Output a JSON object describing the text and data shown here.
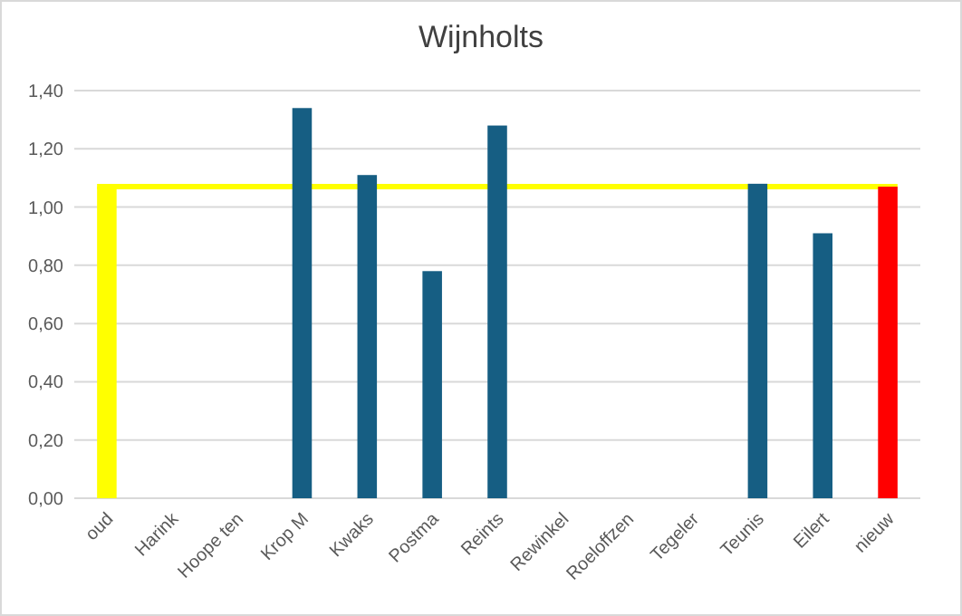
{
  "chart_data": {
    "type": "bar",
    "title": "Wijnholts",
    "categories": [
      "oud",
      "Harink",
      "Hoope ten",
      "Krop M",
      "Kwaks",
      "Postma",
      "Reints",
      "Rewinkel",
      "Roeloffzen",
      "Tegeler",
      "Teunis",
      "Eilert",
      "nieuw"
    ],
    "values": [
      1.07,
      null,
      null,
      1.34,
      1.11,
      0.78,
      1.28,
      null,
      null,
      null,
      1.08,
      0.91,
      1.07
    ],
    "colors": [
      "#ffff00",
      null,
      null,
      "#165e83",
      "#165e83",
      "#165e83",
      "#165e83",
      null,
      null,
      null,
      "#165e83",
      "#165e83",
      "#ff0000"
    ],
    "ylim": [
      0,
      1.4
    ],
    "yticks": [
      {
        "value": 0,
        "label": "0,00"
      },
      {
        "value": 0.2,
        "label": "0,20"
      },
      {
        "value": 0.4,
        "label": "0,40"
      },
      {
        "value": 0.6,
        "label": "0,60"
      },
      {
        "value": 0.8,
        "label": "0,80"
      },
      {
        "value": 1,
        "label": "1,00"
      },
      {
        "value": 1.2,
        "label": "1,20"
      },
      {
        "value": 1.4,
        "label": "1,40"
      }
    ],
    "grid": "y",
    "ref_lines": [
      {
        "axis": "y",
        "value": 1.07,
        "color": "#ffff00"
      }
    ]
  }
}
